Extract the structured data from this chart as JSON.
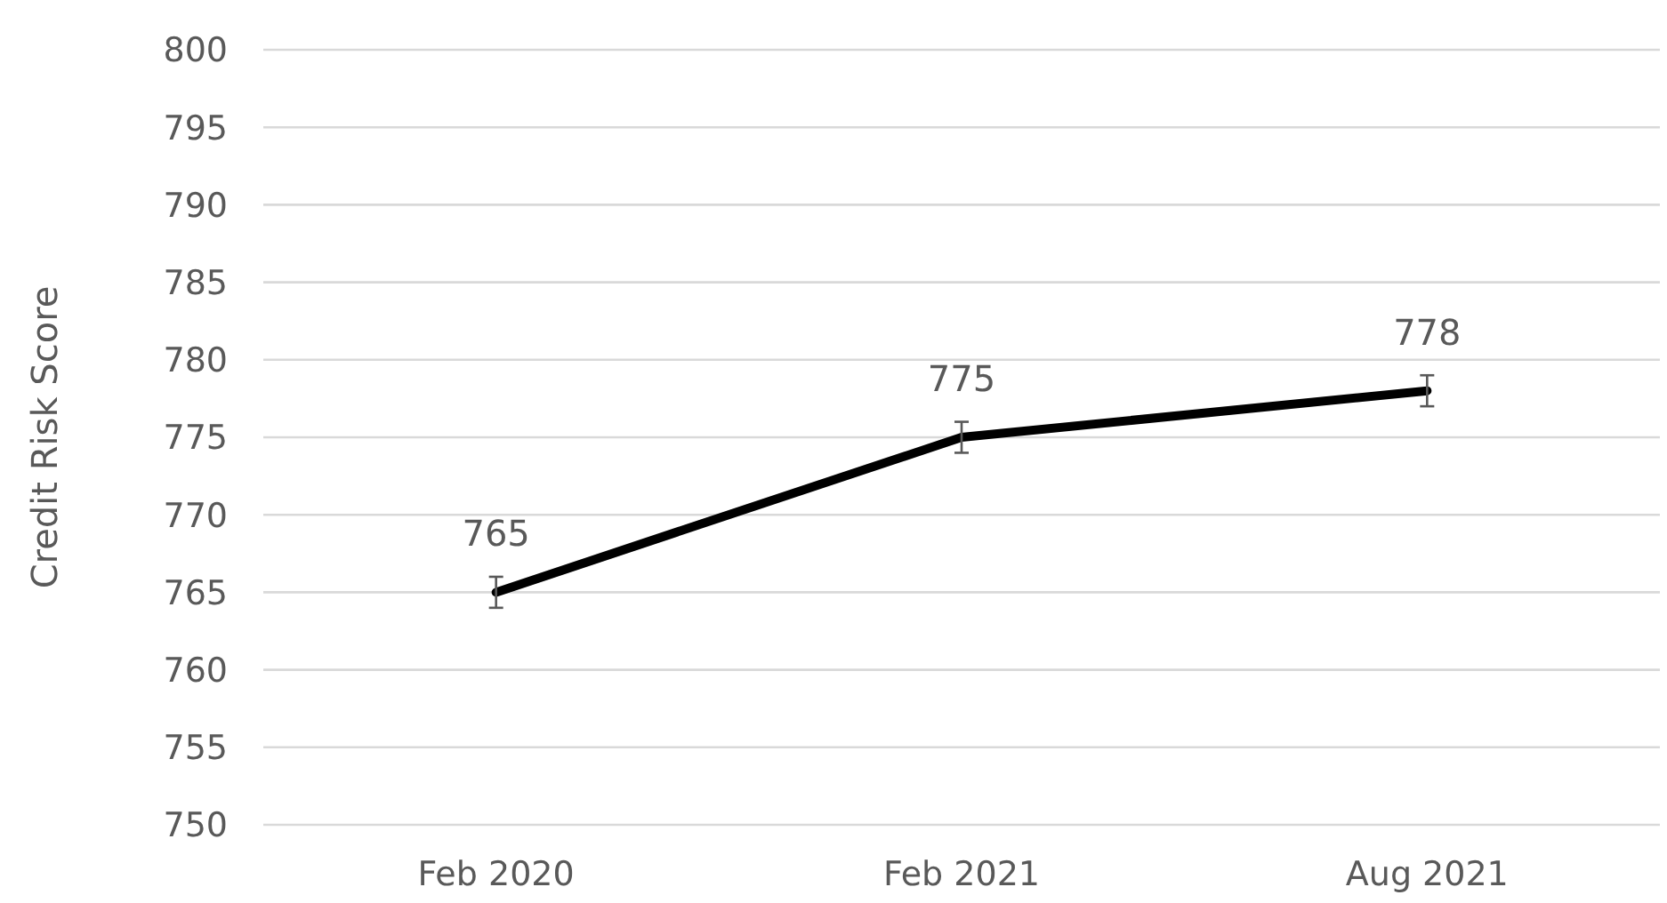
{
  "chart_data": {
    "type": "line",
    "ylabel": "Credit Risk Score",
    "categories": [
      "Feb 2020",
      "Feb 2021",
      "Aug 2021"
    ],
    "series": [
      {
        "color": "#000000",
        "values": [
          765,
          775,
          778
        ],
        "errors": [
          1,
          1,
          1
        ]
      }
    ],
    "ylim": [
      750,
      800
    ],
    "yticks": [
      750,
      755,
      760,
      765,
      770,
      775,
      780,
      785,
      790,
      795,
      800
    ],
    "grid": "y",
    "data_labels": true,
    "marker": "none",
    "line_style": "solid"
  }
}
